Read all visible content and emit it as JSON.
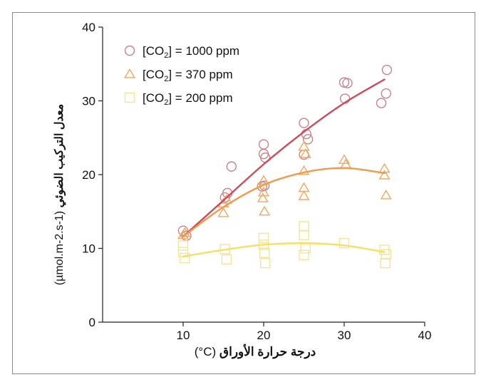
{
  "chart_data": {
    "type": "scatter",
    "xlabel": "درجة حرارة الأوراق",
    "xlabel_unit": "(°C)",
    "ylabel": "معدل التركيب الضوئي",
    "ylabel_unit": "(µmol.m-2.s-1)",
    "xlim": [
      0,
      40
    ],
    "ylim": [
      0,
      40
    ],
    "xticks": [
      10,
      20,
      30,
      40
    ],
    "yticks": [
      0,
      10,
      20,
      30,
      40
    ],
    "grid": false,
    "legend_position": "top-left",
    "series": [
      {
        "name": "[CO2] = 1000 ppm",
        "legend_label": {
          "prefix": "[CO",
          "sub": "2",
          "suffix": "] = 1000 ppm"
        },
        "marker": "circle",
        "color": "#c8828a",
        "line_color": "#cc4a5c",
        "points": [
          [
            10,
            12.4
          ],
          [
            10.4,
            11.7
          ],
          [
            15.2,
            16.9
          ],
          [
            15.5,
            17.5
          ],
          [
            16,
            21.1
          ],
          [
            20,
            24.1
          ],
          [
            20,
            22.8
          ],
          [
            20.2,
            22.3
          ],
          [
            20.1,
            18.5
          ],
          [
            19.8,
            18.4
          ],
          [
            25,
            27
          ],
          [
            25.3,
            25.5
          ],
          [
            25.5,
            24.8
          ],
          [
            25,
            22.7
          ],
          [
            30,
            32.5
          ],
          [
            30.4,
            32.4
          ],
          [
            30.1,
            30.3
          ],
          [
            35.3,
            34.2
          ],
          [
            35.2,
            31
          ],
          [
            34.6,
            29.7
          ]
        ],
        "fit": [
          [
            10,
            11.6
          ],
          [
            15,
            16.5
          ],
          [
            20,
            21.4
          ],
          [
            25,
            25.8
          ],
          [
            30,
            29.7
          ],
          [
            35,
            32.9
          ]
        ]
      },
      {
        "name": "[CO2] = 370 ppm",
        "legend_label": {
          "prefix": "[CO",
          "sub": "2",
          "suffix": "] = 370 ppm"
        },
        "marker": "triangle",
        "color": "#f0a860",
        "line_color": "#f39a4a",
        "points": [
          [
            10,
            11.8
          ],
          [
            10.2,
            12.1
          ],
          [
            15,
            16.1
          ],
          [
            15,
            14.8
          ],
          [
            15.4,
            16.6
          ],
          [
            20,
            19.2
          ],
          [
            20,
            17.6
          ],
          [
            19.9,
            16.8
          ],
          [
            20.1,
            15
          ],
          [
            25,
            23.8
          ],
          [
            25.2,
            22.8
          ],
          [
            25,
            20.5
          ],
          [
            25,
            18.2
          ],
          [
            25,
            17.1
          ],
          [
            30,
            22
          ],
          [
            30.2,
            21.4
          ],
          [
            35,
            20.8
          ],
          [
            35,
            19.9
          ],
          [
            35.2,
            17.2
          ]
        ],
        "fit": [
          [
            10,
            11.6
          ],
          [
            15,
            15.6
          ],
          [
            20,
            18.6
          ],
          [
            25,
            20.3
          ],
          [
            30,
            20.9
          ],
          [
            35,
            20.2
          ]
        ]
      },
      {
        "name": "[CO2] = 200 ppm",
        "legend_label": {
          "prefix": "[CO",
          "sub": "2",
          "suffix": "] = 200 ppm"
        },
        "marker": "square",
        "color": "#f4e49a",
        "line_color": "#f6e060",
        "points": [
          [
            10,
            10.4
          ],
          [
            10,
            9.5
          ],
          [
            10.2,
            8.7
          ],
          [
            15.2,
            9.9
          ],
          [
            15.4,
            8.5
          ],
          [
            20,
            11.4
          ],
          [
            20,
            10.5
          ],
          [
            20.1,
            9.4
          ],
          [
            20.2,
            8
          ],
          [
            25,
            13
          ],
          [
            25,
            11.8
          ],
          [
            25.2,
            10
          ],
          [
            25,
            9.1
          ],
          [
            30,
            10.7
          ],
          [
            35,
            9.8
          ],
          [
            35.2,
            9.2
          ],
          [
            35.1,
            8
          ]
        ],
        "fit": [
          [
            10,
            8.9
          ],
          [
            15,
            9.8
          ],
          [
            20,
            10.5
          ],
          [
            25,
            10.7
          ],
          [
            30,
            10.4
          ],
          [
            35,
            9.5
          ]
        ]
      }
    ]
  }
}
